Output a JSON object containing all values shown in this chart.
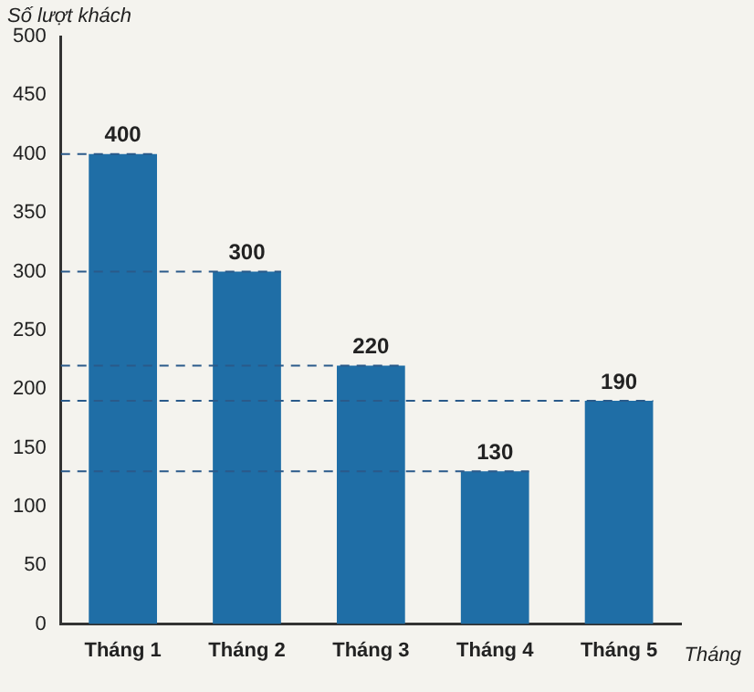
{
  "chart_data": {
    "type": "bar",
    "ylabel": "Số lượt khách",
    "xlabel": "Tháng",
    "categories": [
      "Tháng 1",
      "Tháng 2",
      "Tháng 3",
      "Tháng 4",
      "Tháng 5"
    ],
    "values": [
      400,
      300,
      220,
      130,
      190
    ],
    "color": "#1f6ea6",
    "ylim": [
      0,
      500
    ],
    "yticks": [
      0,
      50,
      100,
      150,
      200,
      250,
      300,
      350,
      400,
      450,
      500
    ],
    "grid": false,
    "legend": false,
    "data_labels": true,
    "ref_lines": [
      {
        "axis": "y",
        "value": 400,
        "line_style": "dashed",
        "color": "#2a5a8a"
      },
      {
        "axis": "y",
        "value": 300,
        "line_style": "dashed",
        "color": "#2a5a8a"
      },
      {
        "axis": "y",
        "value": 220,
        "line_style": "dashed",
        "color": "#2a5a8a"
      },
      {
        "axis": "y",
        "value": 190,
        "line_style": "dashed",
        "color": "#2a5a8a"
      },
      {
        "axis": "y",
        "value": 130,
        "line_style": "dashed",
        "color": "#2a5a8a"
      }
    ]
  }
}
